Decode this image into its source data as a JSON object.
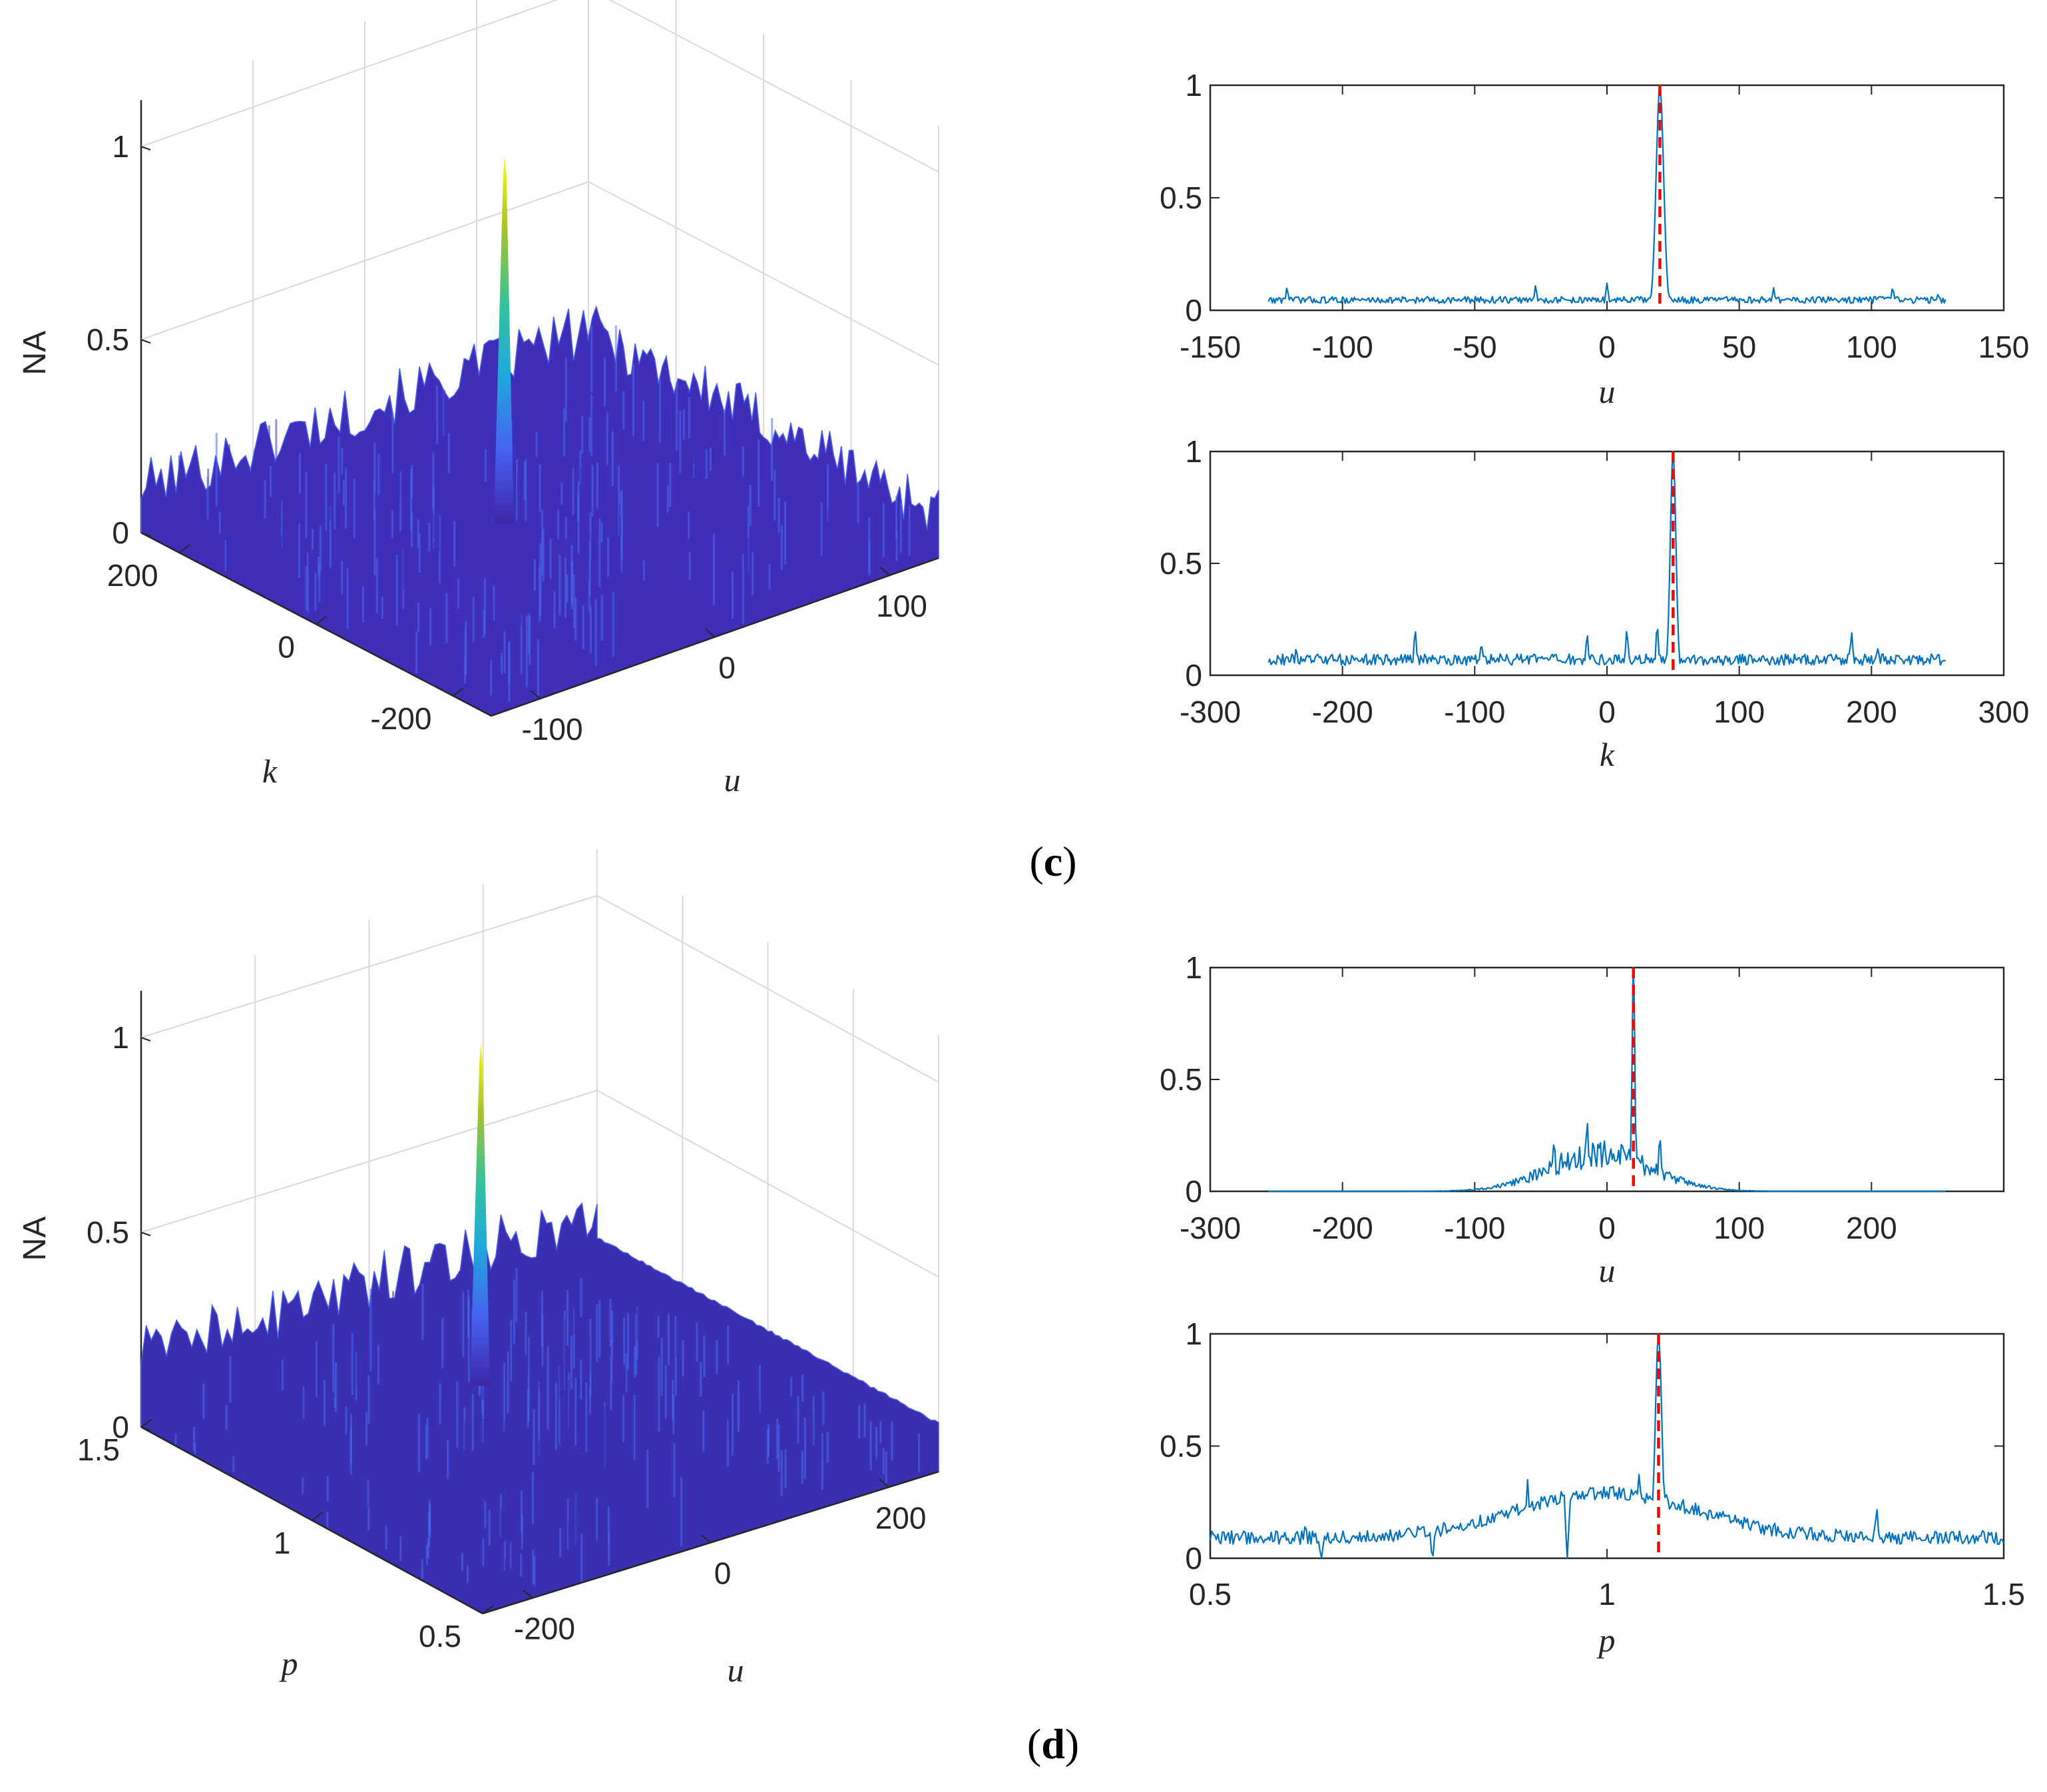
{
  "chart_data": [
    {
      "id": "c-3d",
      "type": "surface",
      "panel": "c",
      "zlabel": "NA",
      "xlabel": "u",
      "ylabel": "k",
      "zticks": [
        "0",
        "0.5",
        "1"
      ],
      "xticks": [
        "-100",
        "0",
        "100"
      ],
      "yticks": [
        "-200",
        "0",
        "200"
      ],
      "xlim": [
        -128,
        128
      ],
      "ylim": [
        -256,
        256
      ],
      "zlim": [
        0,
        1
      ],
      "peak": {
        "u": 20,
        "k": 50,
        "na": 1
      },
      "floor_level": 0.05,
      "colormap": [
        "#3e26a8",
        "#4662f0",
        "#1fa8dd",
        "#35c39b",
        "#a8c22b",
        "#f9fb0e"
      ]
    },
    {
      "id": "c-u",
      "type": "line",
      "panel": "c",
      "xlabel": "u",
      "xlim": [
        -150,
        150
      ],
      "ylim": [
        0,
        1
      ],
      "xticks": [
        "-150",
        "-100",
        "-50",
        "0",
        "50",
        "100",
        "150"
      ],
      "yticks": [
        "0",
        "0.5",
        "1"
      ],
      "range": [
        -128,
        128
      ],
      "peak": 20,
      "peak_width": 2,
      "floor": 0.04,
      "noise": 0.03,
      "spikes": [
        [
          -121,
          0.1
        ],
        [
          -27,
          0.11
        ],
        [
          0,
          0.12
        ],
        [
          63,
          0.1
        ],
        [
          108,
          0.1
        ],
        [
          125,
          0.07
        ]
      ],
      "marker": 20,
      "line_color": "#0072bd",
      "marker_color": "#ff0000"
    },
    {
      "id": "c-k",
      "type": "line",
      "panel": "c",
      "xlabel": "k",
      "xlim": [
        -300,
        300
      ],
      "ylim": [
        0,
        1
      ],
      "xticks": [
        "-300",
        "-200",
        "-100",
        "0",
        "100",
        "200",
        "300"
      ],
      "yticks": [
        "0",
        "0.5",
        "1"
      ],
      "range": [
        -256,
        256
      ],
      "peak": 50,
      "peak_width": 3,
      "floor": 0.06,
      "noise": 0.05,
      "spikes": [
        [
          -235,
          0.12
        ],
        [
          -145,
          0.2
        ],
        [
          -95,
          0.14
        ],
        [
          -15,
          0.18
        ],
        [
          15,
          0.2
        ],
        [
          38,
          0.22
        ],
        [
          185,
          0.19
        ],
        [
          205,
          0.12
        ]
      ],
      "marker": 50,
      "line_color": "#0072bd",
      "marker_color": "#ff0000"
    },
    {
      "id": "d-3d",
      "type": "surface",
      "panel": "d",
      "zlabel": "NA",
      "xlabel": "u",
      "ylabel": "p",
      "zticks": [
        "0",
        "0.5",
        "1"
      ],
      "xticks": [
        "-200",
        "0",
        "200"
      ],
      "yticks": [
        "0.5",
        "1",
        "1.5"
      ],
      "xlim": [
        -256,
        256
      ],
      "ylim": [
        0.5,
        1.5
      ],
      "zlim": [
        0,
        1
      ],
      "peak": {
        "u": 20,
        "p": 1.06,
        "na": 1
      },
      "floor_level": 0.12,
      "colormap": [
        "#3e26a8",
        "#4662f0",
        "#1fa8dd",
        "#35c39b",
        "#a8c22b",
        "#f9fb0e"
      ]
    },
    {
      "id": "d-u",
      "type": "line",
      "panel": "d",
      "xlabel": "u",
      "xlim": [
        -300,
        300
      ],
      "ylim": [
        0,
        1
      ],
      "xticks": [
        "-300",
        "-200",
        "-100",
        "0",
        "100",
        "200"
      ],
      "yticks": [
        "0",
        "0.5",
        "1"
      ],
      "range": [
        -256,
        256
      ],
      "peak": 20,
      "peak_width": 1.5,
      "floor": 0,
      "noise": 0,
      "envelope": {
        "center": -5,
        "width": 55,
        "height": 0.14
      },
      "spikes": [
        [
          -15,
          0.31
        ],
        [
          40,
          0.24
        ],
        [
          -40,
          0.22
        ]
      ],
      "marker": 20,
      "line_color": "#0072bd",
      "marker_color": "#ff0000"
    },
    {
      "id": "d-p",
      "type": "line",
      "panel": "d",
      "xlabel": "p",
      "xlim": [
        0.5,
        1.5
      ],
      "ylim": [
        0,
        1
      ],
      "xticks": [
        "0.5",
        "1",
        "1.5"
      ],
      "yticks": [
        "0",
        "0.5",
        "1"
      ],
      "range": [
        0.5,
        1.5
      ],
      "peak": 1.065,
      "peak_width": 0.006,
      "floor": 0.08,
      "noise": 0.06,
      "envelope": {
        "center": 1.0,
        "width": 0.16,
        "height": 0.2
      },
      "spikes": [
        [
          0.62,
          0.15
        ],
        [
          0.9,
          0.35
        ],
        [
          0.95,
          0.36
        ],
        [
          1.04,
          0.38
        ],
        [
          1.34,
          0.22
        ]
      ],
      "dips": [
        [
          0.64,
          0.0
        ],
        [
          0.78,
          0.0
        ],
        [
          0.95,
          0.0
        ]
      ],
      "marker": 1.065,
      "line_color": "#0072bd",
      "marker_color": "#ff0000"
    }
  ],
  "captions": {
    "c": {
      "open": "(",
      "letter": "c",
      "close": ")"
    },
    "d": {
      "open": "(",
      "letter": "d",
      "close": ")"
    }
  }
}
